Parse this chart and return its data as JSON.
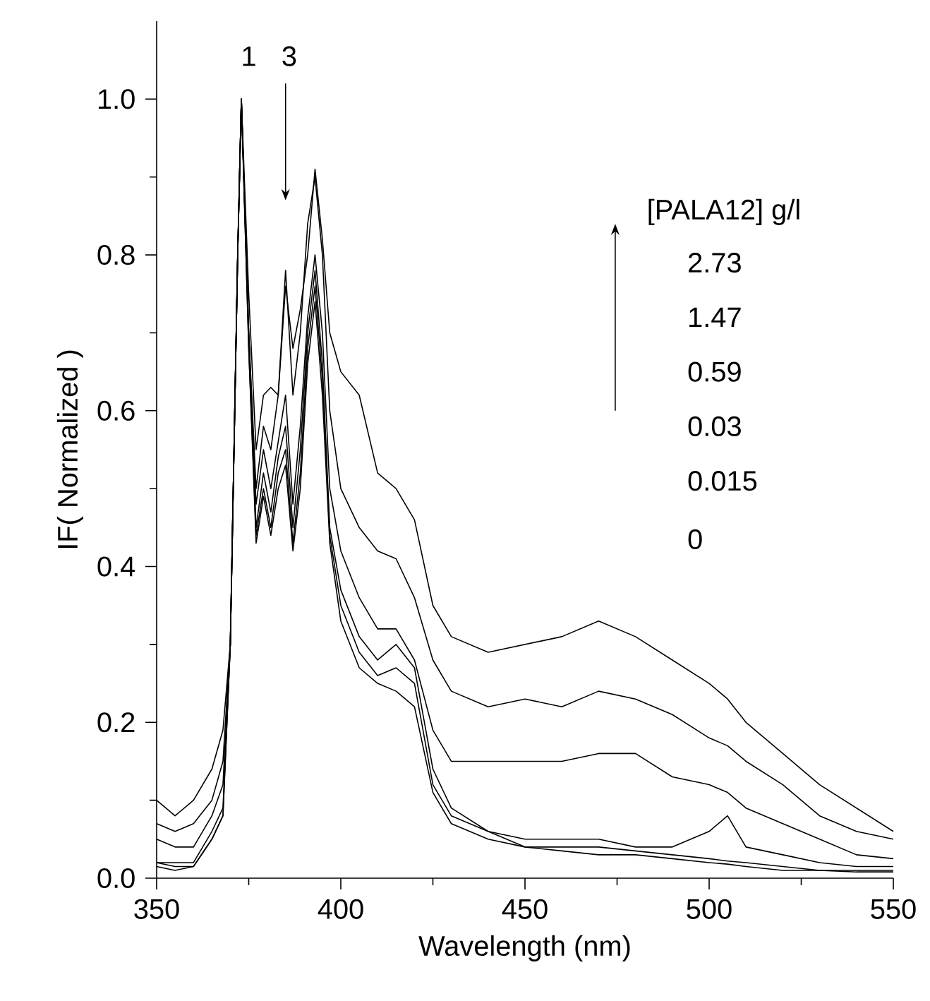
{
  "chart_data": {
    "type": "line",
    "xlabel": "Wavelength (nm)",
    "ylabel": "IF( Normalized )",
    "x": [
      350,
      355,
      360,
      365,
      368,
      370,
      372,
      373,
      375,
      377,
      379,
      381,
      383,
      385,
      387,
      389,
      391,
      393,
      395,
      397,
      400,
      405,
      410,
      415,
      420,
      425,
      430,
      440,
      450,
      460,
      470,
      480,
      490,
      500,
      505,
      510,
      520,
      530,
      540,
      550
    ],
    "series": [
      {
        "color": "#000000",
        "values": [
          0.1,
          0.08,
          0.1,
          0.14,
          0.19,
          0.3,
          0.8,
          1.0,
          0.75,
          0.55,
          0.62,
          0.63,
          0.62,
          0.76,
          0.68,
          0.73,
          0.8,
          0.91,
          0.82,
          0.7,
          0.65,
          0.62,
          0.52,
          0.5,
          0.46,
          0.35,
          0.31,
          0.29,
          0.3,
          0.31,
          0.33,
          0.31,
          0.28,
          0.25,
          0.23,
          0.2,
          0.16,
          0.12,
          0.09,
          0.06
        ]
      },
      {
        "color": "#000000",
        "values": [
          0.07,
          0.06,
          0.07,
          0.1,
          0.15,
          0.3,
          0.8,
          1.0,
          0.7,
          0.5,
          0.58,
          0.55,
          0.62,
          0.78,
          0.62,
          0.7,
          0.84,
          0.9,
          0.8,
          0.6,
          0.5,
          0.45,
          0.42,
          0.41,
          0.36,
          0.28,
          0.24,
          0.22,
          0.23,
          0.22,
          0.24,
          0.23,
          0.21,
          0.18,
          0.17,
          0.15,
          0.12,
          0.08,
          0.06,
          0.05
        ]
      },
      {
        "color": "#000000",
        "values": [
          0.05,
          0.04,
          0.04,
          0.08,
          0.12,
          0.3,
          0.8,
          1.0,
          0.7,
          0.48,
          0.55,
          0.5,
          0.56,
          0.62,
          0.48,
          0.58,
          0.72,
          0.8,
          0.7,
          0.5,
          0.42,
          0.36,
          0.32,
          0.32,
          0.28,
          0.19,
          0.15,
          0.15,
          0.15,
          0.15,
          0.16,
          0.16,
          0.13,
          0.12,
          0.11,
          0.09,
          0.07,
          0.05,
          0.03,
          0.025
        ]
      },
      {
        "color": "#000000",
        "values": [
          0.02,
          0.02,
          0.02,
          0.06,
          0.09,
          0.3,
          0.8,
          1.0,
          0.7,
          0.45,
          0.52,
          0.47,
          0.54,
          0.58,
          0.45,
          0.55,
          0.7,
          0.78,
          0.66,
          0.45,
          0.37,
          0.31,
          0.28,
          0.3,
          0.27,
          0.14,
          0.09,
          0.06,
          0.05,
          0.05,
          0.05,
          0.04,
          0.04,
          0.06,
          0.08,
          0.04,
          0.03,
          0.02,
          0.015,
          0.015
        ]
      },
      {
        "color": "#000000",
        "values": [
          0.02,
          0.015,
          0.015,
          0.05,
          0.08,
          0.3,
          0.8,
          1.0,
          0.68,
          0.44,
          0.5,
          0.45,
          0.52,
          0.55,
          0.43,
          0.52,
          0.68,
          0.76,
          0.64,
          0.44,
          0.35,
          0.29,
          0.26,
          0.27,
          0.25,
          0.12,
          0.08,
          0.06,
          0.04,
          0.04,
          0.04,
          0.035,
          0.03,
          0.025,
          0.022,
          0.02,
          0.015,
          0.01,
          0.01,
          0.01
        ]
      },
      {
        "color": "#000000",
        "values": [
          0.015,
          0.01,
          0.015,
          0.05,
          0.08,
          0.3,
          0.8,
          1.0,
          0.68,
          0.43,
          0.49,
          0.44,
          0.5,
          0.53,
          0.42,
          0.5,
          0.66,
          0.74,
          0.62,
          0.43,
          0.33,
          0.27,
          0.25,
          0.24,
          0.22,
          0.11,
          0.07,
          0.05,
          0.04,
          0.035,
          0.03,
          0.03,
          0.025,
          0.02,
          0.018,
          0.015,
          0.01,
          0.01,
          0.008,
          0.008
        ]
      }
    ],
    "annotations": [
      "1",
      "3",
      "[PALA12] g/l",
      "2.73",
      "1.47",
      "0.59",
      "0.03",
      "0.015",
      "0"
    ],
    "xlim": [
      350,
      550
    ],
    "ylim": [
      0,
      1.1
    ],
    "xticks": [
      350,
      400,
      450,
      500,
      550
    ],
    "yticks": [
      {
        "value": 0,
        "label": "0.0"
      },
      {
        "value": 0.2,
        "label": "0.2"
      },
      {
        "value": 0.4,
        "label": "0.4"
      },
      {
        "value": 0.6,
        "label": "0.6"
      },
      {
        "value": 0.8,
        "label": "0.8"
      },
      {
        "value": 1.0,
        "label": "1.0"
      }
    ],
    "marker": "none",
    "line_style": "solid"
  }
}
